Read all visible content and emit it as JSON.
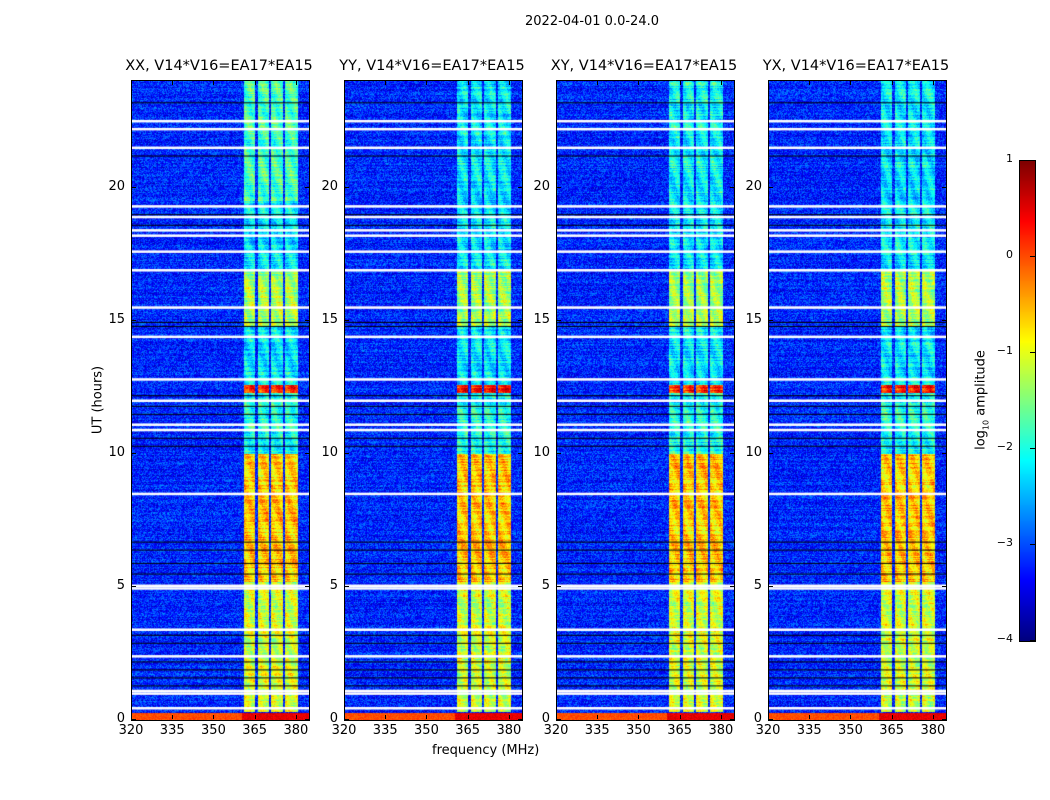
{
  "chart_data": {
    "type": "heatmap",
    "suptitle": "2022-04-01 0.0-24.0",
    "panels": [
      {
        "title": "XX, V14*V16=EA17*EA15",
        "rfi_low_hours_level": -1.8
      },
      {
        "title": "YY, V14*V16=EA17*EA15",
        "rfi_low_hours_level": -2.2
      },
      {
        "title": "XY, V14*V16=EA17*EA15",
        "rfi_low_hours_level": -2.1
      },
      {
        "title": "YX, V14*V16=EA17*EA15",
        "rfi_low_hours_level": -2.2
      }
    ],
    "xlabel": "frequency (MHz)",
    "ylabel": "UT (hours)",
    "xlim": [
      320,
      384.4
    ],
    "ylim": [
      0,
      24
    ],
    "xticks": [
      "320",
      "335",
      "350",
      "365",
      "380"
    ],
    "xtick_values": [
      320,
      335,
      350,
      365,
      380
    ],
    "yticks": [
      "0",
      "5",
      "10",
      "15",
      "20"
    ],
    "ytick_values": [
      0,
      5,
      10,
      15,
      20
    ],
    "colorbar": {
      "label_main": "log",
      "label_sub": "10",
      "label_rest": " amplitude",
      "range": [
        -4,
        1
      ],
      "ticks": [
        "1",
        "0",
        "−1",
        "−2",
        "−3",
        "−4"
      ],
      "tick_values": [
        1,
        0,
        -1,
        -2,
        -3,
        -4
      ],
      "colormap": "jet"
    },
    "background_level": -3.2,
    "rfi_subbands_mhz": [
      [
        360.8,
        364.6
      ],
      [
        365.8,
        369.8
      ],
      [
        370.6,
        374.8
      ],
      [
        375.8,
        380.3
      ]
    ],
    "rfi_time_levels": [
      {
        "from": 0.3,
        "to": 5.2,
        "level": -1.1
      },
      {
        "from": 5.2,
        "to": 10.0,
        "level": -0.6
      },
      {
        "from": 10.0,
        "to": 12.3,
        "level": -2.0
      },
      {
        "from": 12.3,
        "to": 12.6,
        "level": 0.2
      },
      {
        "from": 12.6,
        "to": 14.8,
        "level": -2.2
      },
      {
        "from": 14.8,
        "to": 16.9,
        "level": -1.3
      },
      {
        "from": 16.9,
        "to": 19.5,
        "level": -2.2
      },
      {
        "from": 19.5,
        "to": 24.0,
        "level": -1.9
      }
    ],
    "flagged_hours_white": [
      0.45,
      1.0,
      1.1,
      2.4,
      3.4,
      4.95,
      5.05,
      8.5,
      10.9,
      11.1,
      12.0,
      12.8,
      14.4,
      15.5,
      16.9,
      17.6,
      18.2,
      18.4,
      18.9,
      19.3,
      21.5,
      22.2,
      22.5
    ],
    "flagged_hours_black": [
      1.3,
      1.6,
      1.9,
      2.2,
      2.9,
      3.2,
      5.5,
      5.9,
      6.4,
      6.7,
      10.3,
      10.6,
      11.5,
      11.8,
      12.2,
      14.8,
      14.95,
      18.6,
      19.0,
      21.2,
      23.2
    ],
    "bottom_row_level": 0.3
  }
}
